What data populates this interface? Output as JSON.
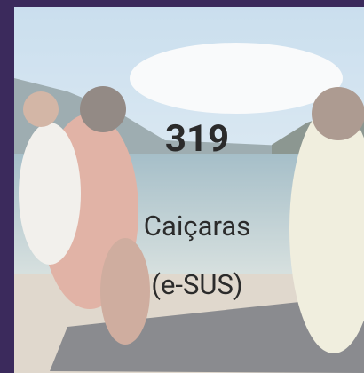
{
  "card": {
    "value": 319,
    "label": "Caiçaras",
    "source": "(e-SUS)"
  }
}
